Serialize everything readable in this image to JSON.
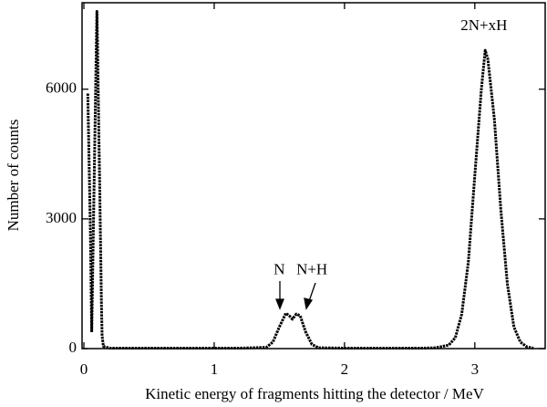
{
  "chart_data": {
    "type": "line",
    "x_label": "Kinetic energy of fragments hitting the detector / MeV",
    "y_label": "Number of counts",
    "xlim": [
      0,
      3.54
    ],
    "ylim": [
      0,
      8000
    ],
    "xticks": [
      0,
      1,
      2,
      3
    ],
    "yticks": [
      0,
      3000,
      6000
    ],
    "series": [
      {
        "color": "#000000",
        "x": [
          0.03,
          0.05,
          0.06,
          0.1,
          0.105,
          0.11,
          0.115,
          0.12,
          0.125,
          0.13,
          0.135,
          0.14,
          0.15,
          0.2,
          0.4,
          0.6,
          0.8,
          1.0,
          1.2,
          1.4,
          1.45,
          1.5,
          1.55,
          1.58,
          1.6,
          1.63,
          1.66,
          1.7,
          1.75,
          1.8,
          2.0,
          2.2,
          2.4,
          2.6,
          2.7,
          2.8,
          2.85,
          2.9,
          2.95,
          3.0,
          3.05,
          3.08,
          3.1,
          3.15,
          3.2,
          3.25,
          3.3,
          3.35,
          3.4,
          3.45
        ],
        "values": [
          5900,
          2800,
          380,
          7800,
          7000,
          6000,
          5000,
          4000,
          3000,
          2000,
          1000,
          300,
          50,
          10,
          10,
          10,
          10,
          10,
          10,
          30,
          150,
          500,
          820,
          750,
          680,
          800,
          760,
          400,
          100,
          20,
          10,
          10,
          10,
          10,
          20,
          80,
          250,
          800,
          2000,
          4000,
          6000,
          6900,
          6700,
          5300,
          3200,
          1500,
          500,
          150,
          40,
          10
        ]
      }
    ],
    "annotations": [
      {
        "text": "N",
        "x": 1.5,
        "y": 1800
      },
      {
        "text": "N+H",
        "x": 1.75,
        "y": 1800
      },
      {
        "text": "2N+xH",
        "x": 3.07,
        "y": 7450
      }
    ]
  }
}
